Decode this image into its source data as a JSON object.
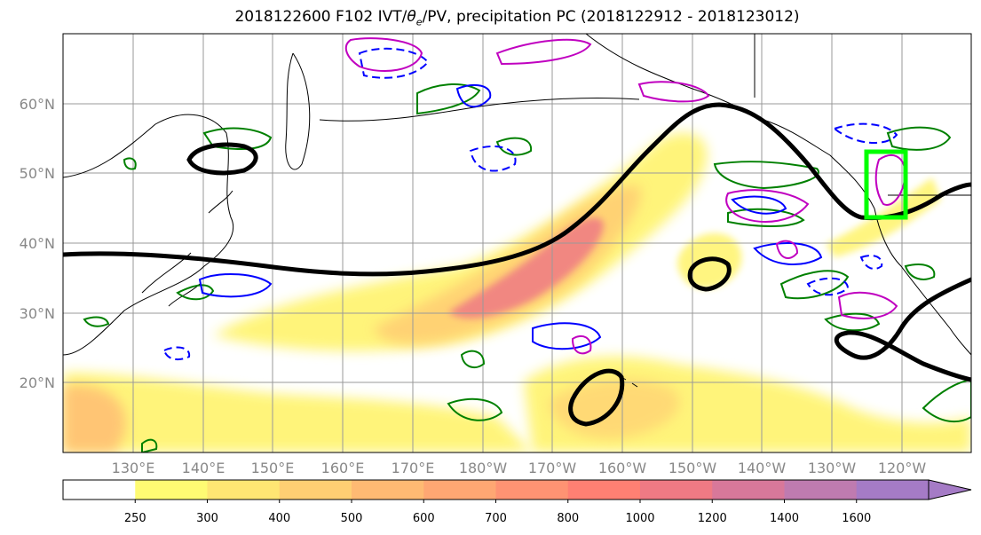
{
  "title": {
    "prefix": "2018122600 F102 IVT/",
    "theta": "θ",
    "theta_sub": "e",
    "suffix": "/PV, precipitation PC (2018122912 - 2018123012)"
  },
  "lat_labels": [
    "60°N",
    "50°N",
    "40°N",
    "30°N",
    "20°N"
  ],
  "lon_labels": [
    "130°E",
    "140°E",
    "150°E",
    "160°E",
    "170°E",
    "180°W",
    "170°W",
    "160°W",
    "150°W",
    "140°W",
    "130°W",
    "120°W"
  ],
  "colorbar": {
    "ticks": [
      "250",
      "300",
      "400",
      "500",
      "600",
      "700",
      "800",
      "1000",
      "1200",
      "1400",
      "1600"
    ],
    "colors": [
      "#ffffff",
      "#fffb73",
      "#ffe673",
      "#ffcf73",
      "#ffba73",
      "#ffa773",
      "#ff9373",
      "#ff8073",
      "#ef7a84",
      "#d8789a",
      "#bf7bb0",
      "#a57bc6"
    ],
    "extend": "max"
  },
  "colors": {
    "ivt_low": "#fffb73",
    "ivt_high": "#ef7a84",
    "pv_contour": "#000000",
    "precip_positive": "#008000",
    "precip_negative": "#0000ff",
    "theta_e": "#c000c0",
    "box": "#00ff00",
    "coastline": "#000000",
    "grid": "#999999"
  },
  "map": {
    "extent_lon": [
      120,
      -110
    ],
    "extent_lat": [
      10,
      70
    ],
    "gridlines": true,
    "projection": "PlateCarree"
  }
}
